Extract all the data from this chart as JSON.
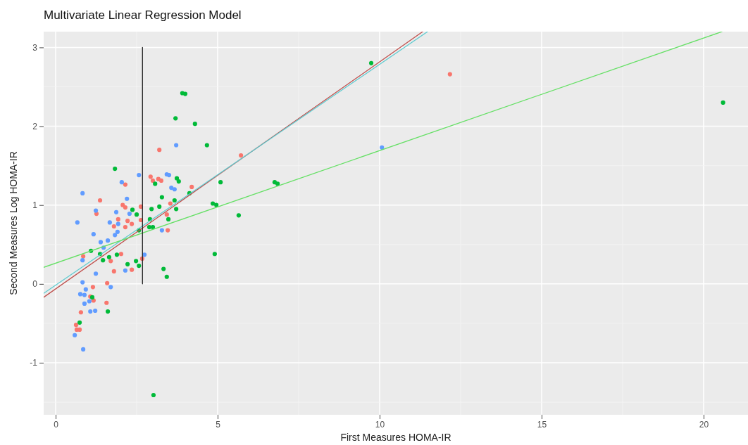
{
  "chart_data": {
    "type": "scatter",
    "title": "Multivariate Linear Regression Model",
    "xlabel": "First Measures HOMA-IR",
    "ylabel": "Second Measures Log HOMA-IR",
    "xlim": [
      -0.37,
      21.37
    ],
    "ylim": [
      -1.66,
      3.2
    ],
    "xticks": [
      0,
      5,
      10,
      15,
      20
    ],
    "yticks": [
      -1,
      0,
      1,
      2,
      3
    ],
    "grid": true,
    "series": [
      {
        "marker": "circle",
        "color": "#f8766d",
        "x": [
          12.17,
          5.72,
          3.2,
          2.93,
          3.0,
          3.17,
          3.26,
          4.2,
          3.54,
          2.63,
          2.63,
          3.43,
          3.46,
          2.15,
          1.37,
          1.26,
          2.07,
          2.15,
          1.93,
          1.8,
          2.22,
          2.35,
          2.15,
          0.85,
          1.7,
          2.02,
          1.8,
          2.35,
          1.59,
          1.15,
          1.07,
          1.17,
          1.57,
          0.78,
          0.63,
          0.65,
          0.74,
          2.67
        ],
        "values": [
          2.66,
          1.63,
          1.7,
          1.36,
          1.31,
          1.33,
          1.31,
          1.23,
          1.02,
          0.98,
          0.81,
          0.88,
          0.68,
          1.26,
          1.06,
          0.89,
          1.0,
          0.97,
          0.82,
          0.73,
          0.8,
          0.76,
          0.72,
          0.35,
          0.29,
          0.38,
          0.16,
          0.18,
          0.01,
          -0.04,
          -0.16,
          -0.21,
          -0.24,
          -0.36,
          -0.52,
          -0.58,
          -0.58,
          0.32
        ]
      },
      {
        "marker": "circle",
        "color": "#00ba38",
        "x": [
          9.74,
          20.6,
          3.91,
          4.0,
          3.7,
          4.3,
          1.83,
          4.67,
          3.74,
          3.8,
          5.09,
          3.07,
          3.28,
          3.67,
          2.96,
          3.2,
          3.72,
          4.13,
          3.48,
          2.91,
          2.89,
          3.0,
          2.57,
          6.76,
          6.85,
          4.85,
          4.96,
          5.65,
          4.91,
          3.02,
          2.48,
          2.57,
          3.33,
          3.43,
          1.09,
          1.37,
          1.46,
          1.65,
          1.89,
          2.22,
          1.13,
          1.61,
          0.74,
          2.37,
          2.5
        ],
        "values": [
          2.8,
          2.3,
          2.42,
          2.41,
          2.1,
          2.03,
          1.46,
          1.76,
          1.34,
          1.3,
          1.29,
          1.27,
          1.1,
          1.06,
          0.95,
          0.98,
          0.95,
          1.15,
          0.82,
          0.82,
          0.72,
          0.72,
          0.68,
          1.29,
          1.27,
          1.02,
          1.0,
          0.87,
          0.38,
          -1.41,
          0.29,
          0.23,
          0.19,
          0.09,
          0.42,
          0.38,
          0.3,
          0.34,
          0.37,
          0.25,
          -0.17,
          -0.35,
          -0.49,
          0.94,
          0.88
        ]
      },
      {
        "marker": "circle",
        "color": "#619cff",
        "x": [
          2.57,
          2.04,
          0.83,
          2.2,
          1.24,
          1.87,
          2.28,
          0.67,
          1.67,
          1.93,
          1.91,
          1.83,
          1.17,
          1.61,
          1.39,
          1.48,
          3.72,
          3.43,
          3.5,
          3.57,
          3.67,
          3.28,
          0.83,
          1.24,
          0.83,
          1.7,
          0.93,
          0.76,
          0.89,
          1.04,
          0.89,
          1.07,
          1.22,
          0.59,
          0.85,
          2.15,
          2.74,
          10.07
        ],
        "values": [
          1.38,
          1.29,
          1.15,
          1.08,
          0.93,
          0.91,
          0.89,
          0.78,
          0.78,
          0.76,
          0.66,
          0.62,
          0.63,
          0.55,
          0.53,
          0.46,
          1.76,
          1.39,
          1.38,
          1.22,
          1.2,
          0.68,
          0.3,
          0.13,
          0.02,
          -0.04,
          -0.07,
          -0.13,
          -0.14,
          -0.22,
          -0.25,
          -0.35,
          -0.34,
          -0.65,
          -0.83,
          0.17,
          0.37,
          1.73
        ]
      },
      {
        "type": "line",
        "color": "#c0504d",
        "x": [
          -0.37,
          11.33
        ],
        "values": [
          -0.17,
          3.2
        ]
      },
      {
        "type": "line",
        "color": "#5fcbd0",
        "x": [
          -0.37,
          11.48
        ],
        "values": [
          -0.12,
          3.2
        ]
      },
      {
        "type": "line",
        "color": "#66e066",
        "x": [
          -0.37,
          20.57
        ],
        "values": [
          0.21,
          3.2
        ]
      },
      {
        "type": "line",
        "color": "#222222",
        "x": [
          2.68,
          2.68
        ],
        "values": [
          0,
          3
        ]
      }
    ]
  }
}
